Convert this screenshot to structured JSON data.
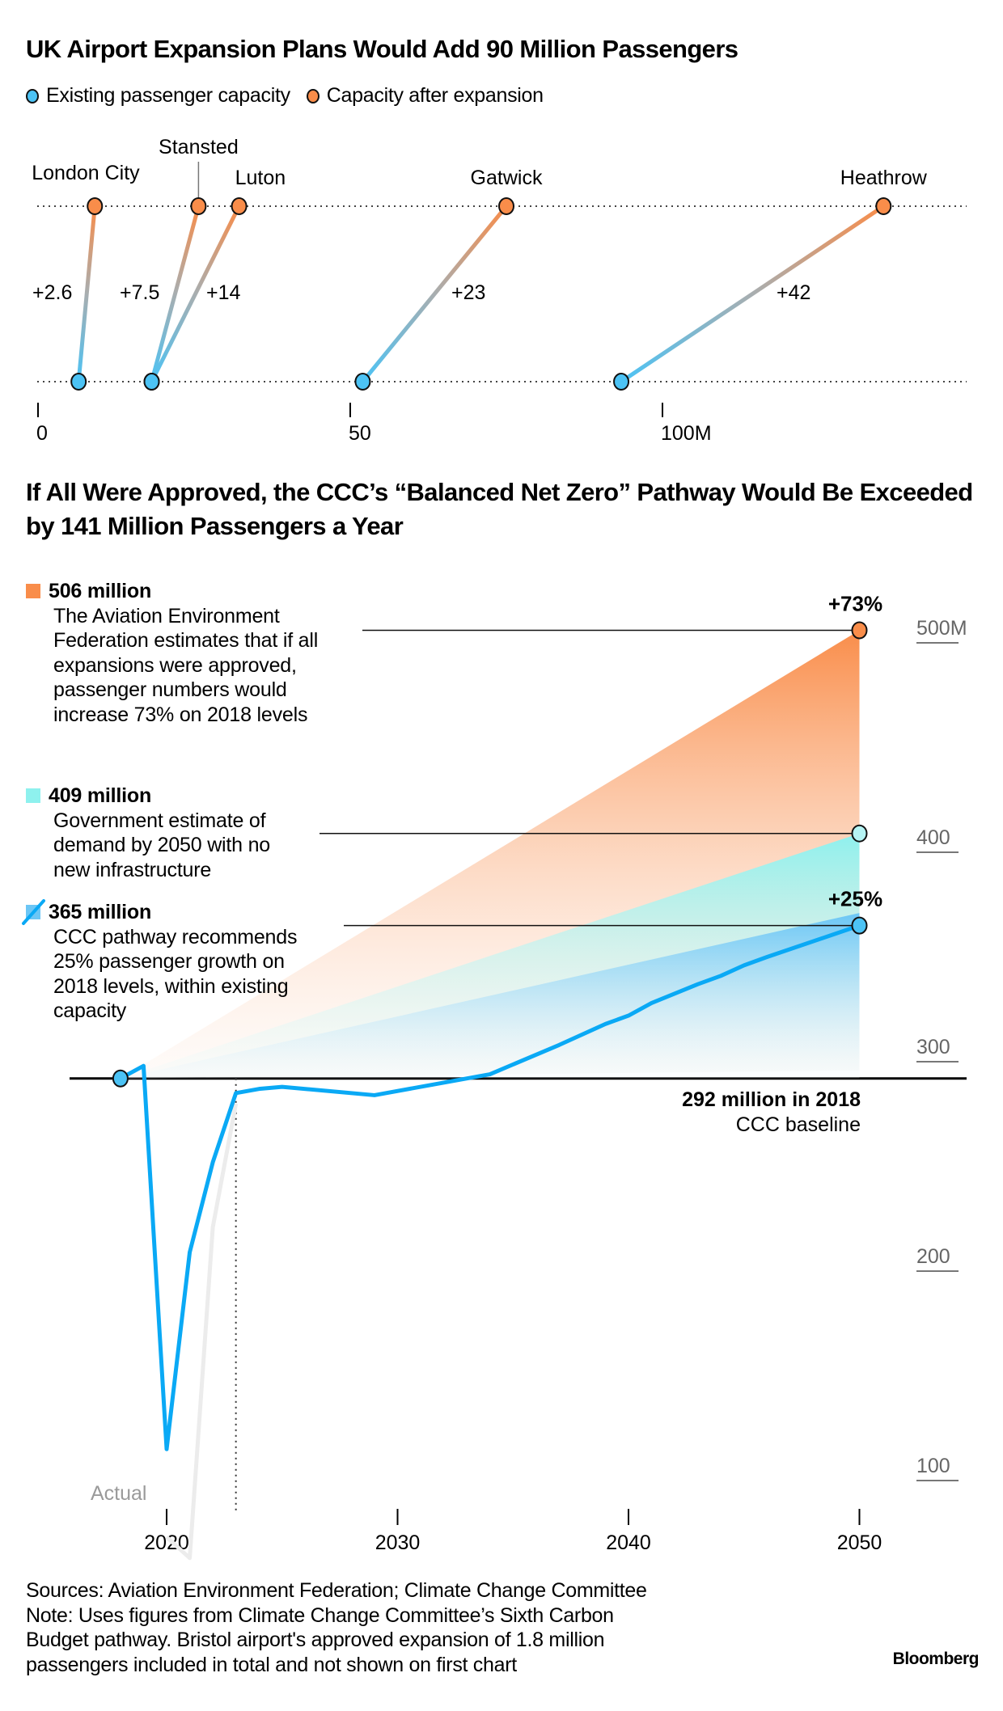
{
  "colors": {
    "existing": "#4cc3f5",
    "expanded": "#f98d4a",
    "aef_area": "#f98d4a",
    "gov_area": "#8ef1ee",
    "ccc_area": "#6cc6f5",
    "ccc_line": "#0aa9f5",
    "actual_line": "#ececec",
    "axis_label": "#666666"
  },
  "chart_data": [
    {
      "type": "dumbbell",
      "title": "UK Airport Expansion Plans Would Add 90 Million Passengers",
      "legend": [
        {
          "label": "Existing passenger capacity",
          "color_key": "existing"
        },
        {
          "label": "Capacity after expansion",
          "color_key": "expanded"
        }
      ],
      "unit": "million passengers",
      "xlim": [
        0,
        140
      ],
      "x_ticks": [
        {
          "value": 0,
          "label": "0"
        },
        {
          "value": 50,
          "label": "50"
        },
        {
          "value": 100,
          "label": "100M"
        }
      ],
      "airports": [
        {
          "name": "London City",
          "existing": 6.5,
          "expanded": 9.1,
          "change_label": "+2.6"
        },
        {
          "name": "Stansted",
          "existing": 18.2,
          "expanded": 25.7,
          "change_label": "+7.5"
        },
        {
          "name": "Luton",
          "existing": 18.2,
          "expanded": 32.2,
          "change_label": "+14"
        },
        {
          "name": "Gatwick",
          "existing": 52,
          "expanded": 75,
          "change_label": "+23"
        },
        {
          "name": "Heathrow",
          "existing": 93.4,
          "expanded": 135.4,
          "change_label": "+42"
        }
      ]
    },
    {
      "type": "area",
      "title": "If All Were Approved, the CCC’s “Balanced Net Zero” Pathway Would Be Exceeded by 141 Million Passengers a Year",
      "xlim": [
        2018,
        2050
      ],
      "ylim": [
        100,
        500
      ],
      "x_ticks": [
        2020,
        2030,
        2040,
        2050
      ],
      "y_ticks": [
        {
          "value": 500,
          "label": "500M"
        },
        {
          "value": 400,
          "label": "400"
        },
        {
          "value": 300,
          "label": "300"
        },
        {
          "value": 200,
          "label": "200"
        },
        {
          "value": 100,
          "label": "100"
        }
      ],
      "baseline": {
        "value": 292,
        "year": 2018,
        "label_bold": "292 million in 2018",
        "label": "CCC baseline"
      },
      "today_marker_year": 2023,
      "scenarios": [
        {
          "key": "aef",
          "value_2050": 506,
          "headline": "506 million",
          "description": "The Aviation Environment\nFederation estimates that if all\nexpansions were approved,\npassenger numbers would\nincrease 73% on 2018 levels",
          "pct_label": "+73%",
          "color_key": "aef_area"
        },
        {
          "key": "gov",
          "value_2050": 409,
          "headline": "409 million",
          "description": "Government estimate of\ndemand by 2050 with no\nnew infrastructure",
          "pct_label": "",
          "color_key": "gov_area"
        },
        {
          "key": "ccc",
          "value_2050": 365,
          "area_top_2050": 371,
          "headline": "365 million",
          "description": "CCC pathway recommends\n25% passenger growth on\n2018 levels, within existing\ncapacity",
          "pct_label": "+25%",
          "color_key": "ccc_area"
        }
      ],
      "series": [
        {
          "name": "CCC pathway",
          "x": [
            2018,
            2019,
            2020,
            2021,
            2022,
            2023,
            2024,
            2025,
            2029,
            2034,
            2037,
            2039,
            2040,
            2041,
            2043,
            2044,
            2045,
            2046,
            2050
          ],
          "y": [
            292,
            298,
            115,
            209,
            252,
            285,
            287,
            288,
            284,
            294,
            308,
            318,
            322,
            328,
            337,
            341,
            346,
            350,
            365
          ]
        },
        {
          "name": "Actual",
          "label": "Actual",
          "x": [
            2020,
            2021,
            2022,
            2023
          ],
          "y": [
            73,
            63,
            221,
            280
          ]
        }
      ]
    }
  ],
  "footer": {
    "text": "Sources: Aviation Environment Federation; Climate Change Committee\nNote: Uses figures from Climate Change Committee’s Sixth Carbon\nBudget pathway. Bristol airport's approved expansion of 1.8 million\npassengers included in total and not shown on first chart",
    "brand": "Bloomberg"
  }
}
